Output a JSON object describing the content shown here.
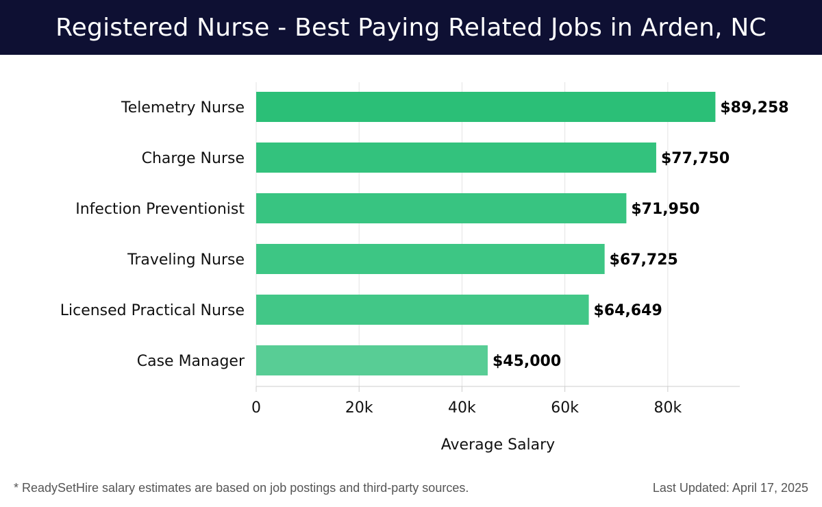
{
  "header": {
    "title": "Registered Nurse - Best Paying Related Jobs in Arden, NC"
  },
  "footer": {
    "note": "* ReadySetHire salary estimates are based on job postings and third-party sources.",
    "updated": "Last Updated: April 17, 2025"
  },
  "colors": {
    "header_bg": "#0e1033",
    "bars": [
      "#2bbf77",
      "#33c27d",
      "#38c481",
      "#3dc684",
      "#42c787",
      "#58cd95"
    ]
  },
  "chart_data": {
    "type": "bar",
    "orientation": "horizontal",
    "title": "Registered Nurse - Best Paying Related Jobs in Arden, NC",
    "xlabel": "Average Salary",
    "ylabel": "",
    "categories": [
      "Telemetry Nurse",
      "Charge Nurse",
      "Infection Preventionist",
      "Traveling Nurse",
      "Licensed Practical Nurse",
      "Case Manager"
    ],
    "values": [
      89258,
      77750,
      71950,
      67725,
      64649,
      45000
    ],
    "value_labels": [
      "$89,258",
      "$77,750",
      "$71,950",
      "$67,725",
      "$64,649",
      "$45,000"
    ],
    "xlim": [
      0,
      94000
    ],
    "xticks": [
      0,
      20000,
      40000,
      60000,
      80000
    ],
    "xtick_labels": [
      "0",
      "20k",
      "40k",
      "60k",
      "80k"
    ],
    "grid": true,
    "legend": "none"
  }
}
